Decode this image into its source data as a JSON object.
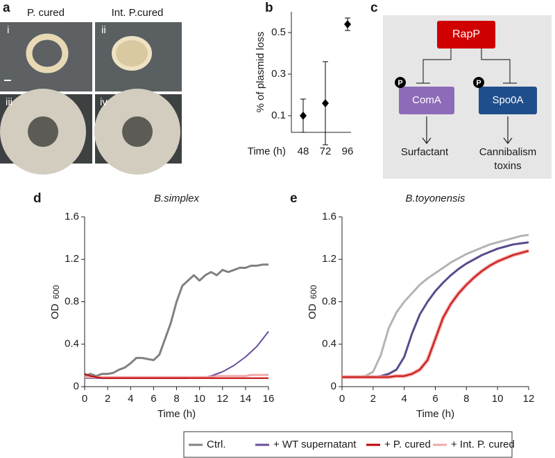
{
  "panel_labels": [
    "a",
    "b",
    "c",
    "d",
    "e"
  ],
  "panel_a": {
    "headers": [
      "P. cured",
      "Int. P.cured"
    ],
    "tiles": [
      "i",
      "ii",
      "iii",
      "iv"
    ]
  },
  "diagram_c": {
    "regulator": "RapP",
    "targets": [
      "ComA",
      "Spo0A"
    ],
    "phospho": "P",
    "outputs": [
      [
        "Surfactant"
      ],
      [
        "Cannibalism",
        "toxins"
      ]
    ]
  },
  "chart_data": [
    {
      "type": "scatter",
      "y_label": "% of plasmid loss",
      "x_label": "Time (h)",
      "categories": [
        "48",
        "72",
        "96"
      ],
      "values": [
        0.1,
        0.16,
        0.54
      ],
      "errors": [
        0.08,
        0.2,
        0.03
      ],
      "color": "#000000",
      "ylim": [
        0.02,
        0.6
      ],
      "yticks": [
        0.1,
        0.3,
        0.5
      ]
    },
    {
      "type": "line",
      "title": "B.simplex",
      "y_label": "OD",
      "y_label_sub": "600",
      "x_label": "Time (h)",
      "x": [
        0,
        0.5,
        1,
        1.5,
        2,
        2.5,
        3,
        3.5,
        4,
        4.5,
        5,
        5.5,
        6,
        6.5,
        7,
        7.5,
        8,
        8.5,
        9,
        9.5,
        10,
        10.5,
        11,
        11.5,
        12,
        12.5,
        13,
        13.5,
        14,
        14.5,
        15,
        15.5,
        16
      ],
      "xlim": [
        0,
        16
      ],
      "xticks": [
        0,
        2,
        4,
        6,
        8,
        10,
        12,
        14,
        16
      ],
      "ylim": [
        0,
        1.6
      ],
      "yticks": [
        0,
        0.4,
        0.8,
        1.2,
        1.6
      ],
      "series": [
        {
          "name": "Ctrl.",
          "color": "#808080",
          "width": 3,
          "values": [
            0.1,
            0.12,
            0.1,
            0.12,
            0.12,
            0.13,
            0.16,
            0.18,
            0.22,
            0.27,
            0.27,
            0.26,
            0.25,
            0.3,
            0.45,
            0.6,
            0.8,
            0.95,
            1.0,
            1.05,
            1.0,
            1.05,
            1.08,
            1.05,
            1.1,
            1.08,
            1.1,
            1.12,
            1.12,
            1.14,
            1.14,
            1.15,
            1.15
          ]
        },
        {
          "name": "+ WT supernatant",
          "color": "#6a4c9c",
          "width": 2,
          "values": [
            0.08,
            0.08,
            0.08,
            0.08,
            0.08,
            0.08,
            0.08,
            0.08,
            0.08,
            0.08,
            0.08,
            0.08,
            0.08,
            0.08,
            0.08,
            0.08,
            0.08,
            0.08,
            0.08,
            0.085,
            0.09,
            0.09,
            0.1,
            0.12,
            0.14,
            0.17,
            0.2,
            0.24,
            0.28,
            0.33,
            0.38,
            0.45,
            0.52
          ]
        },
        {
          "name": "+ Int. P. cured",
          "color": "#f2a7a7",
          "width": 3,
          "values": [
            0.09,
            0.09,
            0.09,
            0.09,
            0.09,
            0.09,
            0.09,
            0.09,
            0.09,
            0.09,
            0.09,
            0.09,
            0.09,
            0.09,
            0.09,
            0.09,
            0.09,
            0.09,
            0.09,
            0.09,
            0.09,
            0.09,
            0.09,
            0.1,
            0.1,
            0.1,
            0.1,
            0.1,
            0.1,
            0.11,
            0.11,
            0.11,
            0.11
          ]
        },
        {
          "name": "+ P. cured",
          "color": "#c00000",
          "width": 2,
          "values": [
            0.12,
            0.1,
            0.09,
            0.08,
            0.08,
            0.08,
            0.08,
            0.08,
            0.08,
            0.08,
            0.08,
            0.08,
            0.08,
            0.08,
            0.08,
            0.08,
            0.08,
            0.08,
            0.08,
            0.08,
            0.08,
            0.08,
            0.08,
            0.08,
            0.08,
            0.08,
            0.08,
            0.08,
            0.08,
            0.08,
            0.08,
            0.08,
            0.08
          ]
        }
      ]
    },
    {
      "type": "line",
      "title": "B.toyonensis",
      "y_label": "OD",
      "y_label_sub": "600",
      "x_label": "Time (h)",
      "x": [
        0,
        0.5,
        1,
        1.5,
        2,
        2.5,
        3,
        3.5,
        4,
        4.5,
        5,
        5.5,
        6,
        6.5,
        7,
        7.5,
        8,
        8.5,
        9,
        9.5,
        10,
        10.5,
        11,
        11.5,
        12
      ],
      "xlim": [
        0,
        12
      ],
      "xticks": [
        0,
        2,
        4,
        6,
        8,
        10,
        12
      ],
      "ylim": [
        0,
        1.6
      ],
      "yticks": [
        0,
        0.4,
        0.8,
        1.2,
        1.6
      ],
      "series": [
        {
          "color": "#b3b3b3",
          "width": 3,
          "values": [
            0.09,
            0.09,
            0.09,
            0.1,
            0.14,
            0.3,
            0.55,
            0.7,
            0.8,
            0.88,
            0.96,
            1.02,
            1.07,
            1.12,
            1.17,
            1.21,
            1.25,
            1.28,
            1.31,
            1.34,
            1.36,
            1.38,
            1.4,
            1.42,
            1.43
          ]
        },
        {
          "color": "#5b4a8c",
          "width": 3,
          "values": [
            0.09,
            0.09,
            0.09,
            0.09,
            0.09,
            0.1,
            0.12,
            0.16,
            0.28,
            0.5,
            0.68,
            0.8,
            0.9,
            0.98,
            1.05,
            1.11,
            1.16,
            1.2,
            1.24,
            1.27,
            1.3,
            1.32,
            1.34,
            1.35,
            1.36
          ]
        },
        {
          "color": "#ee8f8f",
          "width": 5,
          "values": [
            0.09,
            0.09,
            0.09,
            0.09,
            0.09,
            0.09,
            0.09,
            0.1,
            0.1,
            0.12,
            0.16,
            0.25,
            0.45,
            0.65,
            0.78,
            0.88,
            0.96,
            1.03,
            1.09,
            1.14,
            1.18,
            1.21,
            1.24,
            1.26,
            1.28
          ]
        },
        {
          "color": "#c00000",
          "width": 1.5,
          "values": [
            0.09,
            0.09,
            0.09,
            0.09,
            0.09,
            0.09,
            0.09,
            0.1,
            0.1,
            0.12,
            0.16,
            0.25,
            0.45,
            0.65,
            0.78,
            0.88,
            0.96,
            1.03,
            1.09,
            1.14,
            1.18,
            1.21,
            1.24,
            1.26,
            1.28
          ]
        }
      ]
    }
  ]
}
